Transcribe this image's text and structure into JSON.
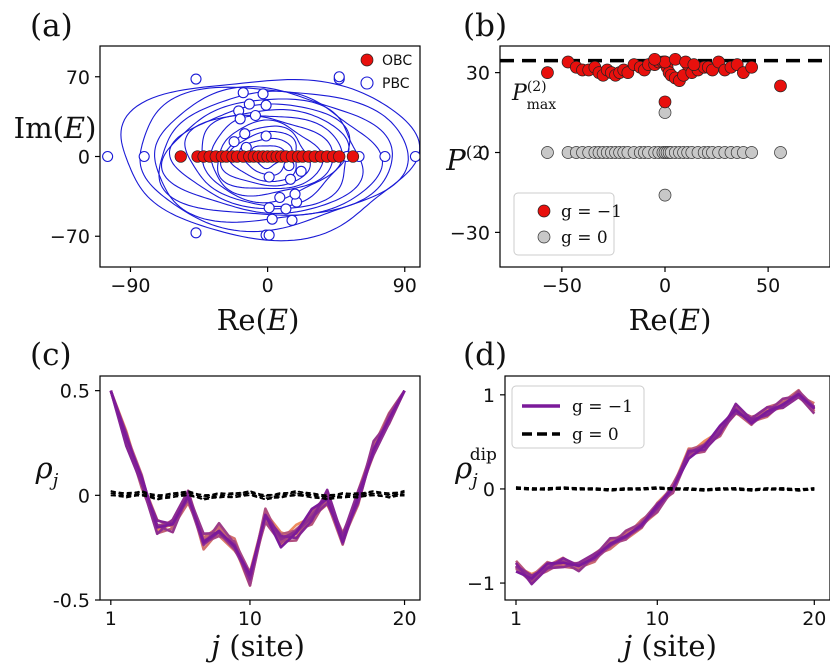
{
  "panels": {
    "a": {
      "label": "(a)"
    },
    "b": {
      "label": "(b)"
    },
    "c": {
      "label": "(c)"
    },
    "d": {
      "label": "(d)"
    }
  },
  "colors": {
    "obc": "#e8100d",
    "pbc": "#1a1ad6",
    "g_minus1_red": "#e8100d",
    "g0_gray": "#c8c8c8",
    "pmax_line": "#000000",
    "ramp_start": "#ed8d5f",
    "ramp_end": "#7b1a9a"
  },
  "chart_data": [
    {
      "panel": "a",
      "type": "scatter",
      "xlabel": "Re(E)",
      "ylabel": "Im(E)",
      "xlim": [
        -110,
        100
      ],
      "ylim": [
        -97,
        97
      ],
      "xticks": [
        -90,
        0,
        90
      ],
      "xtick_labels": [
        "−90",
        "0",
        "90"
      ],
      "yticks": [
        -70,
        0,
        70
      ],
      "ytick_labels": [
        "−70",
        "0",
        "70"
      ],
      "legend": {
        "position": "top-right",
        "entries": [
          "OBC",
          "PBC"
        ]
      },
      "series": [
        {
          "name": "OBC",
          "marker": "filled-circle",
          "x": [
            -57,
            -46,
            -42,
            -38,
            -34,
            -30,
            -27,
            -23,
            -20,
            -16,
            -12,
            -9,
            -6,
            -3,
            0,
            3,
            6,
            9,
            12,
            16,
            20,
            23,
            27,
            31,
            35,
            39,
            43,
            47,
            56
          ],
          "y": [
            0,
            0,
            0,
            0,
            0,
            0,
            0,
            0,
            0,
            0,
            0,
            0,
            0,
            0,
            0,
            0,
            0,
            0,
            0,
            0,
            0,
            0,
            0,
            0,
            0,
            0,
            0,
            0,
            0
          ]
        },
        {
          "name": "PBC",
          "marker": "open-circle",
          "x": [
            -105,
            -81,
            -57,
            -46,
            -42,
            -33,
            -22,
            -15,
            -8,
            0,
            8,
            16,
            24,
            32,
            40,
            46,
            52,
            60,
            77,
            97,
            -47,
            47,
            -1,
            1,
            -16,
            16,
            -3,
            3,
            -12,
            12,
            -19,
            19,
            -18,
            18,
            -15,
            15,
            -22,
            22,
            -14,
            14,
            -1,
            1,
            -47,
            47,
            -1,
            1,
            -8,
            8
          ],
          "y": [
            0,
            0,
            0,
            0,
            0,
            0,
            0,
            0,
            0,
            0,
            0,
            0,
            0,
            0,
            0,
            0,
            0,
            0,
            0,
            0,
            68,
            68,
            -69,
            -69,
            56,
            -56,
            55,
            -55,
            46,
            -46,
            40,
            -40,
            33,
            -33,
            20,
            -20,
            13,
            -13,
            8,
            -8,
            18,
            -18,
            -67,
            70,
            45,
            -45,
            36,
            -36
          ]
        }
      ],
      "loops": [
        {
          "a": 96,
          "b": 70
        },
        {
          "a": 88,
          "b": 62
        },
        {
          "a": 78,
          "b": 58
        },
        {
          "a": 72,
          "b": 54
        },
        {
          "a": 64,
          "b": 50
        },
        {
          "a": 58,
          "b": 46
        },
        {
          "a": 52,
          "b": 42
        },
        {
          "a": 46,
          "b": 38
        },
        {
          "a": 40,
          "b": 34
        },
        {
          "a": 34,
          "b": 30
        },
        {
          "a": 28,
          "b": 26
        },
        {
          "a": 22,
          "b": 22
        },
        {
          "a": 16,
          "b": 16
        },
        {
          "a": 10,
          "b": 10
        }
      ]
    },
    {
      "panel": "b",
      "type": "scatter",
      "xlabel": "Re(E)",
      "ylabel": "P^(2)",
      "xlim": [
        -80,
        80
      ],
      "ylim": [
        -43,
        40
      ],
      "xticks": [
        -50,
        0,
        50
      ],
      "xtick_labels": [
        "−50",
        "0",
        "50"
      ],
      "yticks": [
        -30,
        0,
        30
      ],
      "ytick_labels": [
        "−30",
        "0",
        "30"
      ],
      "reference_line": {
        "label": "P^(2)_max",
        "y": 34.5,
        "style": "dashed"
      },
      "legend": {
        "position": "lower-left",
        "entries": [
          "g = −1",
          "g = 0"
        ]
      },
      "series": [
        {
          "name": "g = −1",
          "marker": "filled-circle",
          "x": [
            -57,
            -47,
            -43,
            -40,
            -37,
            -34,
            -32,
            -30,
            -28,
            -26,
            -24,
            -22,
            -20,
            -18,
            -15,
            -12,
            -10,
            -8,
            -5,
            -3,
            -1,
            0,
            1,
            2,
            3,
            5,
            7,
            9,
            11,
            13,
            16,
            19,
            21,
            23,
            26,
            29,
            32,
            35,
            38,
            42,
            56,
            0,
            0,
            -5,
            5,
            10,
            14
          ],
          "y": [
            30,
            34,
            32,
            31,
            31,
            32,
            30,
            29,
            31,
            30,
            29,
            30,
            31,
            30,
            33,
            32,
            31,
            33,
            33,
            34,
            34,
            34,
            32,
            30,
            29,
            28,
            27,
            29,
            33,
            30,
            31,
            32,
            32,
            31,
            34,
            31,
            32,
            33,
            30,
            32,
            25,
            19,
            34,
            35,
            35,
            34,
            33
          ]
        },
        {
          "name": "g = 0",
          "marker": "filled-circle",
          "x": [
            -57,
            -47,
            -43,
            -40,
            -37,
            -34,
            -32,
            -30,
            -28,
            -26,
            -24,
            -22,
            -20,
            -18,
            -15,
            -12,
            -10,
            -8,
            -5,
            -3,
            -1,
            0,
            1,
            2,
            3,
            5,
            7,
            9,
            11,
            13,
            16,
            19,
            21,
            23,
            26,
            29,
            32,
            35,
            38,
            42,
            56,
            0,
            0
          ],
          "y": [
            0,
            0,
            0,
            0,
            0,
            0,
            0,
            0,
            0,
            0,
            0,
            0,
            0,
            0,
            0,
            0,
            0,
            0,
            0,
            0,
            0,
            0,
            0,
            0,
            0,
            0,
            0,
            0,
            0,
            0,
            0,
            0,
            0,
            0,
            0,
            0,
            0,
            0,
            0,
            0,
            0,
            15,
            -16
          ]
        }
      ]
    },
    {
      "panel": "c",
      "type": "line",
      "xlabel": "j (site)",
      "ylabel": "ρ_j",
      "xlim": [
        0.3,
        21.0
      ],
      "ylim": [
        -0.5,
        0.57
      ],
      "xticks": [
        1,
        10,
        20
      ],
      "xtick_labels": [
        "1",
        "10",
        "20"
      ],
      "yticks": [
        -0.5,
        0,
        0.5
      ],
      "ytick_labels": [
        "-0.5",
        "0",
        "0.5"
      ],
      "x": [
        1,
        2,
        3,
        4,
        5,
        6,
        7,
        8,
        9,
        10,
        11,
        12,
        13,
        14,
        15,
        16,
        17,
        18,
        19,
        20
      ],
      "base": [
        0.5,
        0.27,
        0.07,
        -0.15,
        -0.14,
        0.0,
        -0.22,
        -0.17,
        -0.24,
        -0.4,
        -0.1,
        -0.21,
        -0.18,
        -0.1,
        -0.01,
        -0.21,
        -0.01,
        0.22,
        0.36,
        0.5
      ],
      "series": [
        {
          "name": "g = −1",
          "values": [
            0.5,
            0.26,
            0.09,
            -0.12,
            -0.12,
            0.02,
            -0.2,
            -0.15,
            -0.22,
            -0.38,
            -0.12,
            -0.19,
            -0.16,
            -0.12,
            0.02,
            -0.23,
            0.0,
            0.24,
            0.38,
            0.5
          ]
        },
        {
          "name": "g = 0",
          "values": [
            0.01,
            0.0,
            0.01,
            -0.01,
            0.0,
            0.01,
            -0.01,
            0.0,
            0.0,
            0.01,
            -0.01,
            0.0,
            0.01,
            0.0,
            -0.01,
            0.0,
            0.0,
            0.01,
            0.0,
            0.01
          ]
        }
      ]
    },
    {
      "panel": "d",
      "type": "line",
      "xlabel": "j (site)",
      "ylabel": "ρ_j^dip",
      "xlim": [
        0.3,
        21.0
      ],
      "ylim": [
        -1.18,
        1.2
      ],
      "xticks": [
        1,
        10,
        20
      ],
      "xtick_labels": [
        "1",
        "10",
        "20"
      ],
      "yticks": [
        -1,
        0,
        1
      ],
      "ytick_labels": [
        "−1",
        "0",
        "1"
      ],
      "legend": {
        "position": "top-left",
        "entries": [
          "g = −1",
          "g = 0"
        ]
      },
      "x": [
        1,
        2,
        3,
        4,
        5,
        6,
        7,
        8,
        9,
        10,
        11,
        12,
        13,
        14,
        15,
        16,
        17,
        18,
        19,
        20
      ],
      "base": [
        -0.82,
        -0.96,
        -0.82,
        -0.78,
        -0.82,
        -0.72,
        -0.58,
        -0.5,
        -0.38,
        -0.2,
        0.0,
        0.38,
        0.45,
        0.62,
        0.85,
        0.72,
        0.82,
        0.9,
        1.0,
        0.85
      ],
      "series": [
        {
          "name": "g = −1",
          "values": [
            -0.82,
            -0.96,
            -0.82,
            -0.78,
            -0.82,
            -0.72,
            -0.58,
            -0.5,
            -0.38,
            -0.2,
            0.0,
            0.38,
            0.45,
            0.62,
            0.85,
            0.72,
            0.82,
            0.9,
            1.0,
            0.85
          ]
        },
        {
          "name": "g = 0",
          "values": [
            0.01,
            0.0,
            0.0,
            0.01,
            0.0,
            0.0,
            -0.01,
            0.0,
            0.0,
            0.01,
            0.0,
            0.0,
            -0.01,
            0.0,
            0.0,
            -0.01,
            0.0,
            0.0,
            -0.01,
            0.0
          ]
        }
      ]
    }
  ]
}
